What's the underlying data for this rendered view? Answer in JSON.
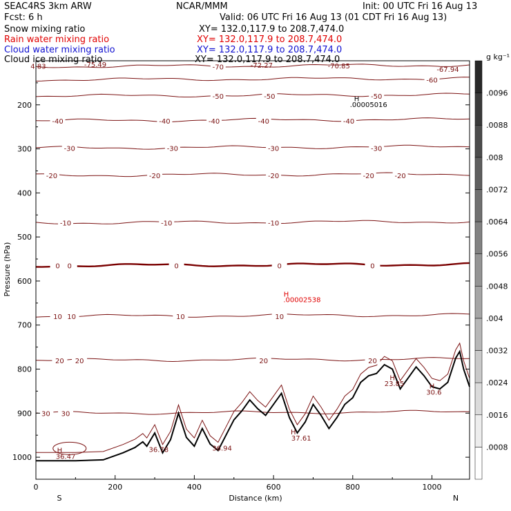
{
  "header": {
    "left_title": "SEAC4RS  3km ARW",
    "center_title": "NCAR/MMM",
    "init": "Init: 00 UTC Fri 16 Aug 13",
    "fcst": "Fcst:     6 h",
    "valid": "Valid: 06 UTC Fri 16 Aug 13 (01 CDT Fri 16 Aug 13)",
    "fields": [
      {
        "name": "Snow mixing ratio",
        "xy": "XY= 132.0,117.9 to 208.7,474.0",
        "color": "#000000"
      },
      {
        "name": "Rain water mixing ratio",
        "xy": "XY= 132.0,117.9 to 208.7,474.0",
        "color": "#e00000"
      },
      {
        "name": "Cloud water mixing ratio",
        "xy": "XY= 132.0,117.9 to 208.7,474.0",
        "color": "#1010d0"
      },
      {
        "name": "Cloud ice mixing ratio",
        "xy": "XY= 132.0,117.9 to 208.7,474.0",
        "color": "#000000"
      }
    ]
  },
  "chart_data": {
    "type": "line",
    "xlabel": "Distance (km)",
    "ylabel": "Pressure (hPa)",
    "xlim": [
      0,
      1095
    ],
    "ylim": [
      1050,
      100
    ],
    "x_ticks": [
      0,
      200,
      400,
      600,
      800,
      1000
    ],
    "y_ticks": [
      200,
      300,
      400,
      500,
      600,
      700,
      800,
      900,
      1000
    ],
    "end_labels": {
      "left": "S",
      "right": "N"
    },
    "colorbar": {
      "unit": "g kg⁻¹",
      "levels": [
        ".0008",
        ".0016",
        ".0024",
        ".0032",
        ".004",
        ".0048",
        ".0056",
        ".0064",
        ".0072",
        ".008",
        ".0088",
        ".0096"
      ]
    },
    "contour_color": "#7a1010",
    "zero_color": "#7a0000",
    "isotherms": [
      {
        "level": -70,
        "p": 113,
        "labels": [
          {
            "x": 460,
            "text": "-70"
          }
        ]
      },
      {
        "level": -60,
        "p": 143,
        "labels": [
          {
            "x": 1000,
            "text": "-60"
          }
        ]
      },
      {
        "level": -50,
        "p": 180,
        "labels": [
          {
            "x": 460,
            "text": "-50"
          },
          {
            "x": 590,
            "text": "-50"
          },
          {
            "x": 860,
            "text": "-50"
          }
        ]
      },
      {
        "level": -40,
        "p": 236,
        "labels": [
          {
            "x": 55,
            "text": "-40"
          },
          {
            "x": 325,
            "text": "-40"
          },
          {
            "x": 450,
            "text": "-40"
          },
          {
            "x": 575,
            "text": "-40"
          },
          {
            "x": 790,
            "text": "-40"
          }
        ]
      },
      {
        "level": -30,
        "p": 298,
        "labels": [
          {
            "x": 85,
            "text": "-30"
          },
          {
            "x": 345,
            "text": "-30"
          },
          {
            "x": 600,
            "text": "-30"
          },
          {
            "x": 860,
            "text": "-30"
          }
        ]
      },
      {
        "level": -20,
        "p": 360,
        "labels": [
          {
            "x": 40,
            "text": "-20"
          },
          {
            "x": 300,
            "text": "-20"
          },
          {
            "x": 600,
            "text": "-20"
          },
          {
            "x": 840,
            "text": "-20"
          },
          {
            "x": 920,
            "text": "-20"
          }
        ]
      },
      {
        "level": -10,
        "p": 468,
        "labels": [
          {
            "x": 75,
            "text": "-10"
          },
          {
            "x": 330,
            "text": "-10"
          },
          {
            "x": 600,
            "text": "-10"
          }
        ]
      },
      {
        "level": 0,
        "p": 565,
        "labels": [
          {
            "x": 55,
            "text": "0"
          },
          {
            "x": 85,
            "text": "0"
          },
          {
            "x": 355,
            "text": "0"
          },
          {
            "x": 615,
            "text": "0"
          },
          {
            "x": 850,
            "text": "0"
          }
        ]
      },
      {
        "level": 10,
        "p": 680,
        "labels": [
          {
            "x": 55,
            "text": "10"
          },
          {
            "x": 90,
            "text": "10"
          },
          {
            "x": 365,
            "text": "10"
          },
          {
            "x": 615,
            "text": "10"
          }
        ]
      },
      {
        "level": 20,
        "p": 780,
        "labels": [
          {
            "x": 60,
            "text": "20"
          },
          {
            "x": 110,
            "text": "20"
          },
          {
            "x": 575,
            "text": "20"
          },
          {
            "x": 850,
            "text": "20"
          }
        ]
      },
      {
        "level": 30,
        "p": 900,
        "labels": [
          {
            "x": 25,
            "text": "30"
          },
          {
            "x": 75,
            "text": "30"
          }
        ]
      }
    ],
    "extrema": [
      {
        "x": 6,
        "p": 118,
        "text": "4.83",
        "color": "#7a1010"
      },
      {
        "x": 150,
        "p": 114,
        "text": "-75.49",
        "color": "#7a1010"
      },
      {
        "x": 570,
        "p": 116,
        "text": "-72.27",
        "color": "#7a1010"
      },
      {
        "x": 765,
        "p": 117,
        "text": "-70.85",
        "color": "#7a1010"
      },
      {
        "x": 1040,
        "p": 125,
        "text": "-67.94",
        "color": "#7a1010"
      },
      {
        "x": 810,
        "p": 192,
        "text": "H",
        "color": "#000000"
      },
      {
        "x": 840,
        "p": 205,
        "text": ".00005016",
        "color": "#000000"
      },
      {
        "x": 632,
        "p": 635,
        "text": "H",
        "color": "#e00000"
      },
      {
        "x": 672,
        "p": 648,
        "text": ".00002538",
        "color": "#e00000"
      },
      {
        "x": 60,
        "p": 990,
        "text": "H",
        "color": "#7a1010"
      },
      {
        "x": 75,
        "p": 1004,
        "text": "36.47",
        "color": "#7a1010"
      },
      {
        "x": 310,
        "p": 988,
        "text": "36.78",
        "color": "#7a1010"
      },
      {
        "x": 470,
        "p": 985,
        "text": "36.94",
        "color": "#7a1010"
      },
      {
        "x": 650,
        "p": 948,
        "text": "H",
        "color": "#7a1010"
      },
      {
        "x": 670,
        "p": 962,
        "text": "37.61",
        "color": "#7a1010"
      },
      {
        "x": 900,
        "p": 825,
        "text": "H",
        "color": "#7a1010"
      },
      {
        "x": 905,
        "p": 838,
        "text": "23.85",
        "color": "#7a1010"
      },
      {
        "x": 1000,
        "p": 844,
        "text": "H",
        "color": "#7a1010"
      },
      {
        "x": 1005,
        "p": 858,
        "text": "30.6",
        "color": "#7a1010"
      }
    ],
    "terrain": [
      [
        0,
        1008
      ],
      [
        100,
        1008
      ],
      [
        170,
        1006
      ],
      [
        220,
        990
      ],
      [
        250,
        978
      ],
      [
        270,
        965
      ],
      [
        280,
        975
      ],
      [
        300,
        945
      ],
      [
        320,
        990
      ],
      [
        340,
        960
      ],
      [
        360,
        900
      ],
      [
        380,
        955
      ],
      [
        400,
        975
      ],
      [
        420,
        935
      ],
      [
        440,
        970
      ],
      [
        460,
        985
      ],
      [
        480,
        950
      ],
      [
        500,
        915
      ],
      [
        520,
        895
      ],
      [
        540,
        870
      ],
      [
        560,
        890
      ],
      [
        580,
        905
      ],
      [
        600,
        880
      ],
      [
        620,
        855
      ],
      [
        640,
        910
      ],
      [
        660,
        945
      ],
      [
        680,
        920
      ],
      [
        700,
        880
      ],
      [
        720,
        905
      ],
      [
        740,
        935
      ],
      [
        760,
        910
      ],
      [
        780,
        880
      ],
      [
        800,
        865
      ],
      [
        820,
        830
      ],
      [
        840,
        815
      ],
      [
        860,
        810
      ],
      [
        880,
        790
      ],
      [
        900,
        800
      ],
      [
        920,
        845
      ],
      [
        940,
        820
      ],
      [
        960,
        795
      ],
      [
        980,
        815
      ],
      [
        1000,
        840
      ],
      [
        1020,
        845
      ],
      [
        1040,
        830
      ],
      [
        1060,
        775
      ],
      [
        1070,
        760
      ],
      [
        1080,
        800
      ],
      [
        1095,
        840
      ]
    ]
  }
}
